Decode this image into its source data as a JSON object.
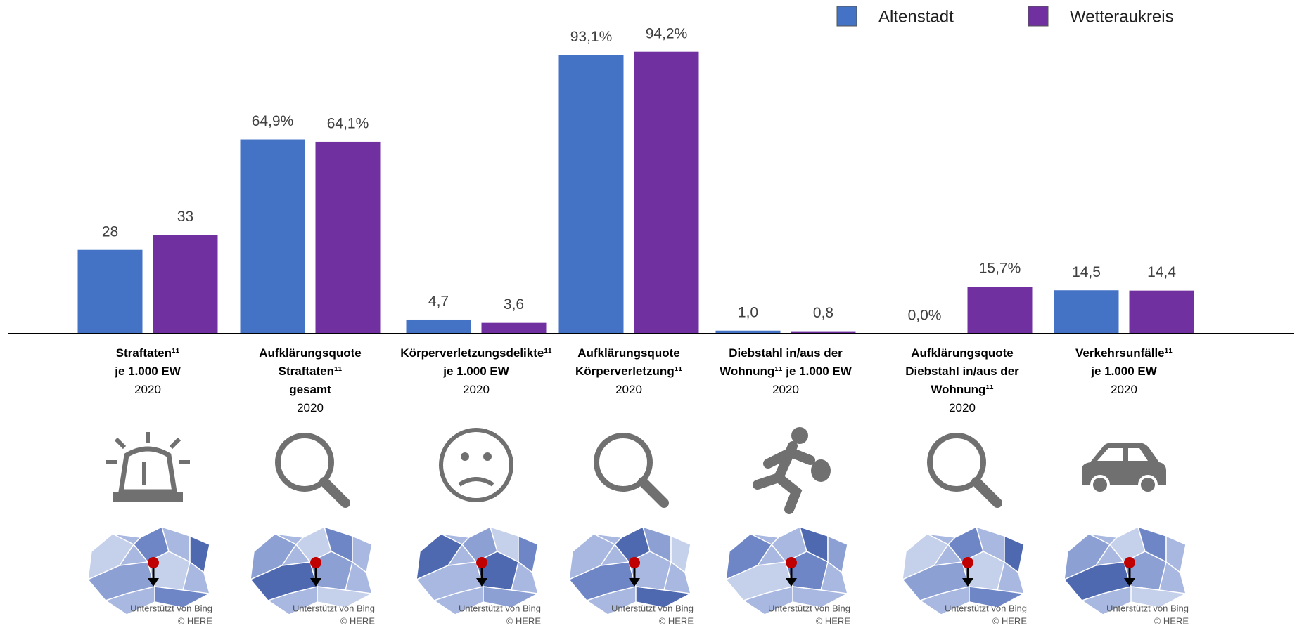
{
  "chart_data": {
    "type": "bar",
    "categories": [
      "Straftaten¹¹\nje 1.000 EW",
      "Aufklärungsquote\nStraftaten¹¹\ngesamt",
      "Körperverletzungsdelikte¹¹\nje 1.000 EW",
      "Aufklärungsquote\nKörperverletzung¹¹",
      "Diebstahl in/aus der\nWohnung¹¹ je 1.000 EW",
      "Aufklärungsquote\nDiebstahl in/aus der\nWohnung¹¹",
      "Verkehrsunfälle¹¹\nje 1.000 EW"
    ],
    "years": [
      "2020",
      "2020",
      "2020",
      "2020",
      "2020",
      "2020",
      "2020"
    ],
    "series": [
      {
        "name": "Altenstadt",
        "color": "#4472c4",
        "values": [
          28,
          64.9,
          4.7,
          93.1,
          1.0,
          0.0,
          14.5
        ],
        "value_labels": [
          "28",
          "64,9%",
          "4,7",
          "93,1%",
          "1,0",
          "0,0%",
          "14,5"
        ]
      },
      {
        "name": "Wetteraukreis",
        "color": "#7030a0",
        "values": [
          33,
          64.1,
          3.6,
          94.2,
          0.8,
          15.7,
          14.4
        ],
        "value_labels": [
          "33",
          "64,1%",
          "3,6",
          "94,2%",
          "0,8",
          "15,7%",
          "14,4"
        ]
      }
    ],
    "legend": "top-right",
    "map_credits": [
      "Unterstützt von Bing",
      "© HERE"
    ]
  }
}
